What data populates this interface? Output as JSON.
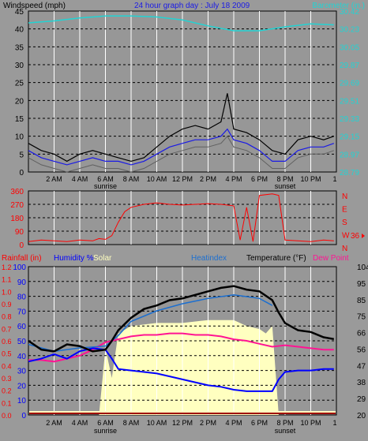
{
  "colors": {
    "background": "#9a9a9a",
    "plot": "#979797",
    "grid_h": "#000000",
    "grid_v": "#ffffff",
    "wind": "#000000",
    "gust_avg": "#1a1ae6",
    "wind_gray": "#606060",
    "barometer": "#22d3d3",
    "direction": "#ff0000",
    "solar": "#ffffc0",
    "humidity": "#0000ff",
    "heatindex": "#1c6fd0",
    "temperature": "#000000",
    "dewpoint": "#ff1493",
    "rainfall": "#ff0000",
    "rain_base": "#a00000"
  },
  "icons": {
    "direction_marker": "right-arrow-icon"
  },
  "chart_data": [
    {
      "type": "line",
      "title": "24 hour graph day : July 18 2009",
      "ylabel_left": "Windspeed (mph)",
      "ylabel_right": "Barometer (in.)",
      "ylim_left": [
        0,
        45
      ],
      "ylim_right": [
        28.79,
        30.42
      ],
      "yticks_left": [
        "0",
        "5",
        "10",
        "15",
        "20",
        "25",
        "30",
        "35",
        "40",
        "45"
      ],
      "yticks_right": [
        "28.79",
        "28.97",
        "29.15",
        "29.33",
        "29.51",
        "29.69",
        "29.87",
        "30.05",
        "30.23",
        "30.42"
      ],
      "x_hours": [
        0,
        24
      ],
      "series": [
        {
          "name": "Windspeed",
          "x": [
            0,
            1,
            2,
            3,
            4,
            5,
            6,
            7,
            8,
            9,
            10,
            11,
            12,
            13,
            14,
            15,
            15.5,
            16,
            17,
            18,
            19,
            20,
            21,
            22,
            23,
            23.8
          ],
          "y": [
            8,
            6,
            5,
            3,
            5,
            6,
            5,
            4,
            3,
            4,
            7,
            10,
            12,
            13,
            12,
            14,
            22,
            12,
            11,
            9,
            6,
            5,
            9,
            10,
            9,
            10
          ]
        },
        {
          "name": "Average wind",
          "x": [
            0,
            1,
            2,
            3,
            4,
            5,
            6,
            7,
            8,
            9,
            10,
            11,
            12,
            13,
            14,
            15,
            15.5,
            16,
            17,
            18,
            19,
            20,
            21,
            22,
            23,
            23.8
          ],
          "y": [
            6,
            4,
            3,
            2,
            3,
            4,
            3,
            3,
            2,
            3,
            5,
            7,
            8,
            9,
            9,
            10,
            12,
            9,
            8,
            6,
            3,
            3,
            6,
            7,
            7,
            8
          ]
        },
        {
          "name": "Barometer",
          "x": [
            0,
            2,
            4,
            6,
            8,
            10,
            12,
            14,
            16,
            18,
            20,
            22,
            23.8
          ],
          "y": [
            30.3,
            30.32,
            30.35,
            30.37,
            30.37,
            30.36,
            30.33,
            30.27,
            30.22,
            30.22,
            30.26,
            30.29,
            30.28
          ]
        }
      ]
    },
    {
      "type": "scatter",
      "title": "",
      "ylim": [
        0,
        360
      ],
      "yticks": [
        "0",
        "90",
        "180",
        "270",
        "360"
      ],
      "compass": [
        "N",
        "W",
        "S",
        "E",
        "N"
      ],
      "right_value": "36",
      "series": [
        {
          "name": "Wind direction",
          "x": [
            0,
            1,
            2,
            3,
            4,
            5,
            5.5,
            6,
            6.5,
            7,
            7.5,
            8,
            9,
            10,
            11,
            12,
            13,
            14,
            15,
            16,
            16.5,
            17,
            17.5,
            18,
            19,
            19.5,
            20,
            21,
            22,
            23,
            23.8
          ],
          "y": [
            20,
            30,
            25,
            20,
            30,
            25,
            40,
            35,
            60,
            150,
            220,
            250,
            270,
            280,
            270,
            265,
            270,
            275,
            270,
            260,
            30,
            250,
            20,
            330,
            340,
            330,
            30,
            25,
            20,
            30,
            25
          ]
        }
      ]
    },
    {
      "type": "line",
      "title": "",
      "labels": {
        "rainfall": "Rainfall (in)",
        "humidity": "Humidity %",
        "solar": "Solar",
        "heatindex": "Heatindex",
        "temperature": "Temperature (°F)",
        "dewpoint": "Dew Point"
      },
      "yticks_rain": [
        "0.0",
        "0.1",
        "0.2",
        "0.3",
        "0.4",
        "0.5",
        "0.6",
        "0.7",
        "0.8",
        "0.9",
        "1.0",
        "1.1",
        "1.2"
      ],
      "yticks_humidity": [
        "0",
        "10",
        "20",
        "30",
        "40",
        "50",
        "60",
        "70",
        "80",
        "90",
        "100"
      ],
      "yticks_temp": [
        "20",
        "29",
        "38",
        "47",
        "56",
        "66",
        "75",
        "85",
        "95",
        "104"
      ],
      "ylim_temp": [
        20,
        104
      ],
      "ylim_humidity": [
        0,
        100
      ],
      "series": [
        {
          "name": "Temperature",
          "x": [
            0,
            1,
            2,
            3,
            4,
            5,
            6,
            6.5,
            7,
            8,
            9,
            10,
            11,
            12,
            13,
            14,
            15,
            16,
            17,
            18,
            19,
            19.5,
            20,
            21,
            22,
            23,
            23.8
          ],
          "y": [
            62,
            57,
            56,
            60,
            59,
            56,
            57,
            62,
            68,
            75,
            80,
            82,
            85,
            86,
            88,
            90,
            92,
            93,
            91,
            90,
            85,
            78,
            72,
            68,
            67,
            64,
            63
          ]
        },
        {
          "name": "Heatindex",
          "x": [
            0,
            2,
            4,
            6,
            7,
            8,
            10,
            12,
            14,
            16,
            17,
            18,
            19
          ],
          "y": [
            60,
            56,
            58,
            59,
            65,
            73,
            79,
            83,
            86,
            88,
            87,
            86,
            82
          ]
        },
        {
          "name": "Humidity",
          "x": [
            0,
            1,
            2,
            3,
            4,
            5,
            6,
            6.5,
            7,
            8,
            9,
            10,
            11,
            12,
            13,
            14,
            15,
            16,
            17,
            18,
            19,
            19.5,
            20,
            21,
            22,
            23,
            23.8
          ],
          "y": [
            36,
            38,
            41,
            38,
            43,
            45,
            44,
            38,
            31,
            30,
            29,
            28,
            26,
            24,
            22,
            20,
            19,
            17,
            16,
            16,
            16,
            24,
            29,
            30,
            30,
            31,
            31
          ]
        },
        {
          "name": "Dew Point",
          "x": [
            0,
            1,
            2,
            3,
            4,
            5,
            6,
            7,
            8,
            9,
            10,
            11,
            12,
            13,
            14,
            15,
            16,
            17,
            18,
            19,
            20,
            21,
            22,
            23,
            23.8
          ],
          "y": [
            37,
            37,
            36,
            38,
            40,
            44,
            49,
            51,
            53,
            54,
            54,
            55,
            55,
            54,
            54,
            53,
            51,
            50,
            48,
            46,
            47,
            46,
            45,
            44,
            44
          ]
        },
        {
          "name": "Solar",
          "x": [
            5.5,
            6,
            6.5,
            7,
            8,
            10,
            12,
            14,
            16,
            17,
            18,
            18.5,
            19,
            19.5
          ],
          "y": [
            0,
            45,
            25,
            55,
            60,
            62,
            62,
            64,
            64,
            60,
            58,
            55,
            60,
            0
          ]
        },
        {
          "name": "Rainfall",
          "x": [
            0,
            23.8
          ],
          "y": [
            0,
            0
          ]
        }
      ]
    }
  ],
  "xaxis": {
    "labels": [
      "2 AM",
      "4 AM",
      "6 AM",
      "8 AM",
      "10 AM",
      "12 PM",
      "2 PM",
      "4 PM",
      "6 PM",
      "8 PM",
      "10 PM",
      "1"
    ],
    "label_hours": [
      2,
      4,
      6,
      8,
      10,
      12,
      14,
      16,
      18,
      20,
      22,
      24
    ],
    "sunrise_label": "sunrise",
    "sunset_label": "sunset",
    "sunrise_hour": 6,
    "sunset_hour": 20
  }
}
